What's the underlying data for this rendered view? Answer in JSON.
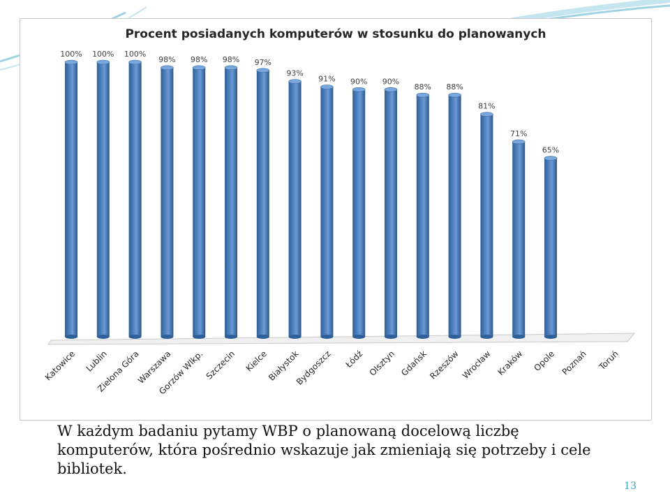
{
  "slide": {
    "caption": "W każdym badaniu pytamy WBP o planowaną docelową liczbę komputerów, która pośrednio wskazuje jak zmieniają się potrzeby i cele bibliotek.",
    "page_number": "13",
    "accent_color": "#3aa0c0"
  },
  "chart_data": {
    "type": "bar",
    "title": "Procent posiadanych komputerów w stosunku do planowanych",
    "xlabel": "",
    "ylabel": "",
    "ylim": [
      0,
      100
    ],
    "grid": false,
    "legend": "none",
    "bar_color": "#4f81bd",
    "categories": [
      "Katowice",
      "Lublin",
      "Zielona Góra",
      "Warszawa",
      "Gorzów Wlkp.",
      "Szczecin",
      "Kielce",
      "Białystok",
      "Bydgoszcz",
      "Łódź",
      "Olsztyn",
      "Gdańsk",
      "Rzeszów",
      "Wrocław",
      "Kraków",
      "Opole",
      "Poznań",
      "Toruń"
    ],
    "values": [
      100,
      100,
      100,
      98,
      98,
      98,
      97,
      93,
      91,
      90,
      90,
      88,
      88,
      81,
      71,
      65,
      null,
      null
    ],
    "value_labels": [
      "100%",
      "100%",
      "100%",
      "98%",
      "98%",
      "98%",
      "97%",
      "93%",
      "91%",
      "90%",
      "90%",
      "88%",
      "88%",
      "81%",
      "71%",
      "65%",
      "",
      ""
    ]
  }
}
